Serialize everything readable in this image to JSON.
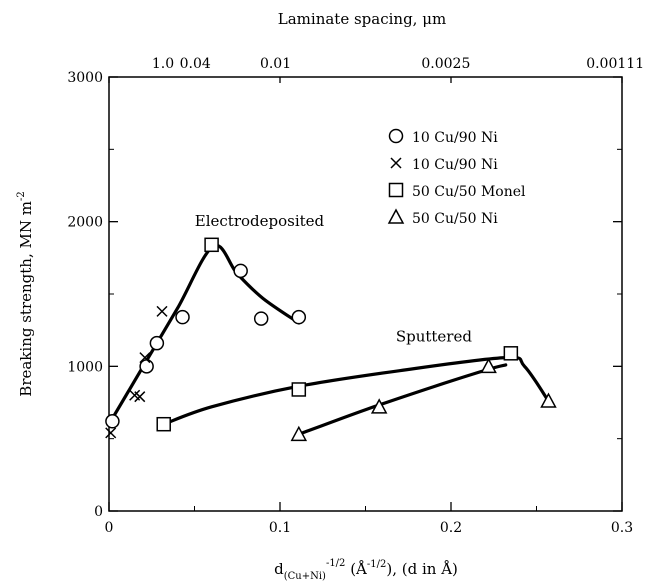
{
  "chart_data": {
    "type": "scatter",
    "top_axis": {
      "title": "Laminate spacing, μm",
      "tick_labels": [
        {
          "label": "1.0",
          "x": 0.0316
        },
        {
          "label": "0.04",
          "x": 0.0504
        },
        {
          "label": "0.01",
          "x": 0.0974
        },
        {
          "label": "0.0025",
          "x": 0.197
        },
        {
          "label": "0.00111",
          "x": 0.296
        }
      ]
    },
    "xlabel": {
      "base": "d",
      "subscript": "(Cu+Ni)",
      "superscript": "-1/2",
      "rest": " (Å",
      "rest_superscript": "-1/2",
      "tail": "), (d in Å)"
    },
    "ylabel": "Breaking strength, MN m",
    "ylabel_superscript": "-2",
    "xlim": [
      0,
      0.3
    ],
    "ylim": [
      0,
      3000
    ],
    "x_ticks": [
      {
        "label": "0",
        "value": 0
      },
      {
        "label": "0.1",
        "value": 0.1
      },
      {
        "label": "0.2",
        "value": 0.2
      },
      {
        "label": "0.3",
        "value": 0.3
      }
    ],
    "y_ticks": [
      {
        "label": "0",
        "value": 0
      },
      {
        "label": "1000",
        "value": 1000
      },
      {
        "label": "2000",
        "value": 2000
      },
      {
        "label": "3000",
        "value": 3000
      }
    ],
    "grid": false,
    "legend_position": "top-right",
    "series": [
      {
        "name": "10 Cu/90 Ni",
        "marker": "circle",
        "points": [
          [
            0.002,
            620
          ],
          [
            0.022,
            1000
          ],
          [
            0.028,
            1160
          ],
          [
            0.043,
            1340
          ],
          [
            0.077,
            1660
          ],
          [
            0.089,
            1330
          ],
          [
            0.111,
            1340
          ]
        ]
      },
      {
        "name": "10 Cu/90 Ni",
        "marker": "x",
        "points": [
          [
            0.001,
            540
          ],
          [
            0.015,
            800
          ],
          [
            0.018,
            790
          ],
          [
            0.021,
            1060
          ],
          [
            0.031,
            1380
          ]
        ]
      },
      {
        "name": "50 Cu/50 Monel",
        "marker": "square",
        "points": [
          [
            0.06,
            1840
          ],
          [
            0.032,
            600
          ],
          [
            0.111,
            840
          ],
          [
            0.235,
            1090
          ]
        ]
      },
      {
        "name": "50 Cu/50 Ni",
        "marker": "triangle",
        "points": [
          [
            0.111,
            530
          ],
          [
            0.158,
            720
          ],
          [
            0.222,
            1000
          ],
          [
            0.257,
            760
          ]
        ]
      }
    ],
    "curves": [
      {
        "points": [
          [
            0,
            600
          ],
          [
            0.02,
            1000
          ],
          [
            0.04,
            1400
          ],
          [
            0.061,
            1830
          ],
          [
            0.075,
            1640
          ],
          [
            0.09,
            1470
          ],
          [
            0.111,
            1300
          ]
        ]
      },
      {
        "points": [
          [
            0.032,
            600
          ],
          [
            0.06,
            720
          ],
          [
            0.11,
            860
          ],
          [
            0.17,
            970
          ],
          [
            0.232,
            1060
          ],
          [
            0.243,
            1000
          ],
          [
            0.257,
            760
          ]
        ]
      },
      {
        "points": [
          [
            0.111,
            530
          ],
          [
            0.15,
            700
          ],
          [
            0.19,
            860
          ],
          [
            0.222,
            980
          ],
          [
            0.232,
            1010
          ]
        ]
      }
    ],
    "annotations": [
      {
        "text": "Electrodeposited",
        "x": 0.088,
        "y": 1970
      },
      {
        "text": "Sputtered",
        "x": 0.19,
        "y": 1170
      }
    ]
  }
}
